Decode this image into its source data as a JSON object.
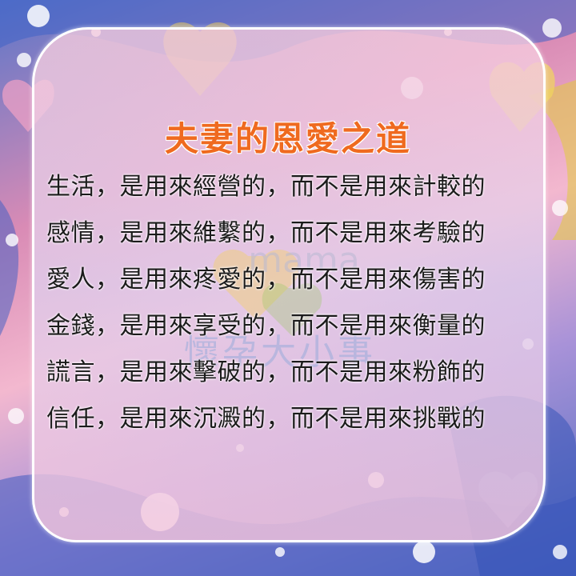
{
  "title": "夫妻的恩愛之道",
  "lines": [
    "生活，是用來經營的，而不是用來計較的",
    "感情，是用來維繫的，而不是用來考驗的",
    "愛人，是用來疼愛的，而不是用來傷害的",
    "金錢，是用來享受的，而不是用來衡量的",
    "謊言，是用來擊破的，而不是用來粉飾的",
    "信任，是用來沉澱的，而不是用來挑戰的"
  ],
  "watermark": {
    "latin": "mama",
    "chinese": "懷孕大小事"
  },
  "colors": {
    "title": "#ef6a1f",
    "text": "#1b1b1b",
    "border": "#ffffff"
  }
}
